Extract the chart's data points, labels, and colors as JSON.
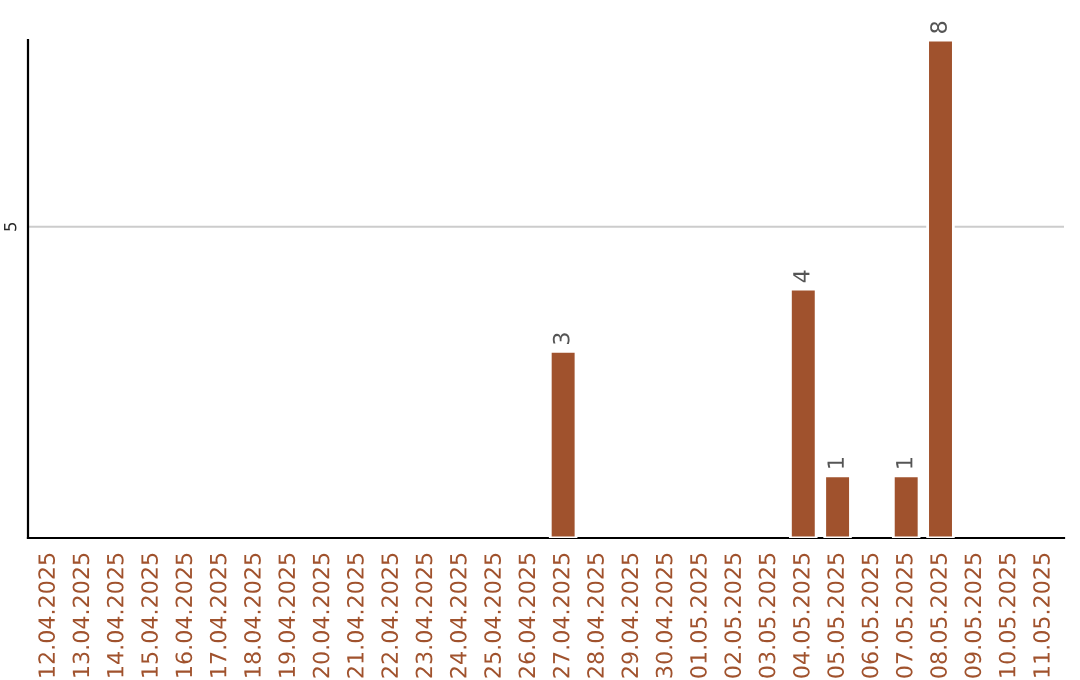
{
  "chart_data": {
    "type": "bar",
    "categories": [
      "12.04.2025",
      "13.04.2025",
      "14.04.2025",
      "15.04.2025",
      "16.04.2025",
      "17.04.2025",
      "18.04.2025",
      "19.04.2025",
      "20.04.2025",
      "21.04.2025",
      "22.04.2025",
      "23.04.2025",
      "24.04.2025",
      "25.04.2025",
      "26.04.2025",
      "27.04.2025",
      "28.04.2025",
      "29.04.2025",
      "30.04.2025",
      "01.05.2025",
      "02.05.2025",
      "03.05.2025",
      "04.05.2025",
      "05.05.2025",
      "06.05.2025",
      "07.05.2025",
      "08.05.2025",
      "09.05.2025",
      "10.05.2025",
      "11.05.2025"
    ],
    "values": [
      null,
      null,
      null,
      null,
      null,
      null,
      null,
      null,
      null,
      null,
      null,
      null,
      null,
      null,
      null,
      3,
      null,
      null,
      null,
      null,
      null,
      null,
      4,
      1,
      null,
      1,
      8,
      null,
      null,
      null
    ],
    "value_labels": [
      null,
      null,
      null,
      null,
      null,
      null,
      null,
      null,
      null,
      null,
      null,
      null,
      null,
      null,
      null,
      "3",
      null,
      null,
      null,
      null,
      null,
      null,
      "4",
      "1",
      null,
      "1",
      "8",
      null,
      null,
      null
    ],
    "color": "#a0522d",
    "ylim": [
      0,
      8
    ],
    "yticks": [
      5
    ],
    "grid": "y"
  }
}
